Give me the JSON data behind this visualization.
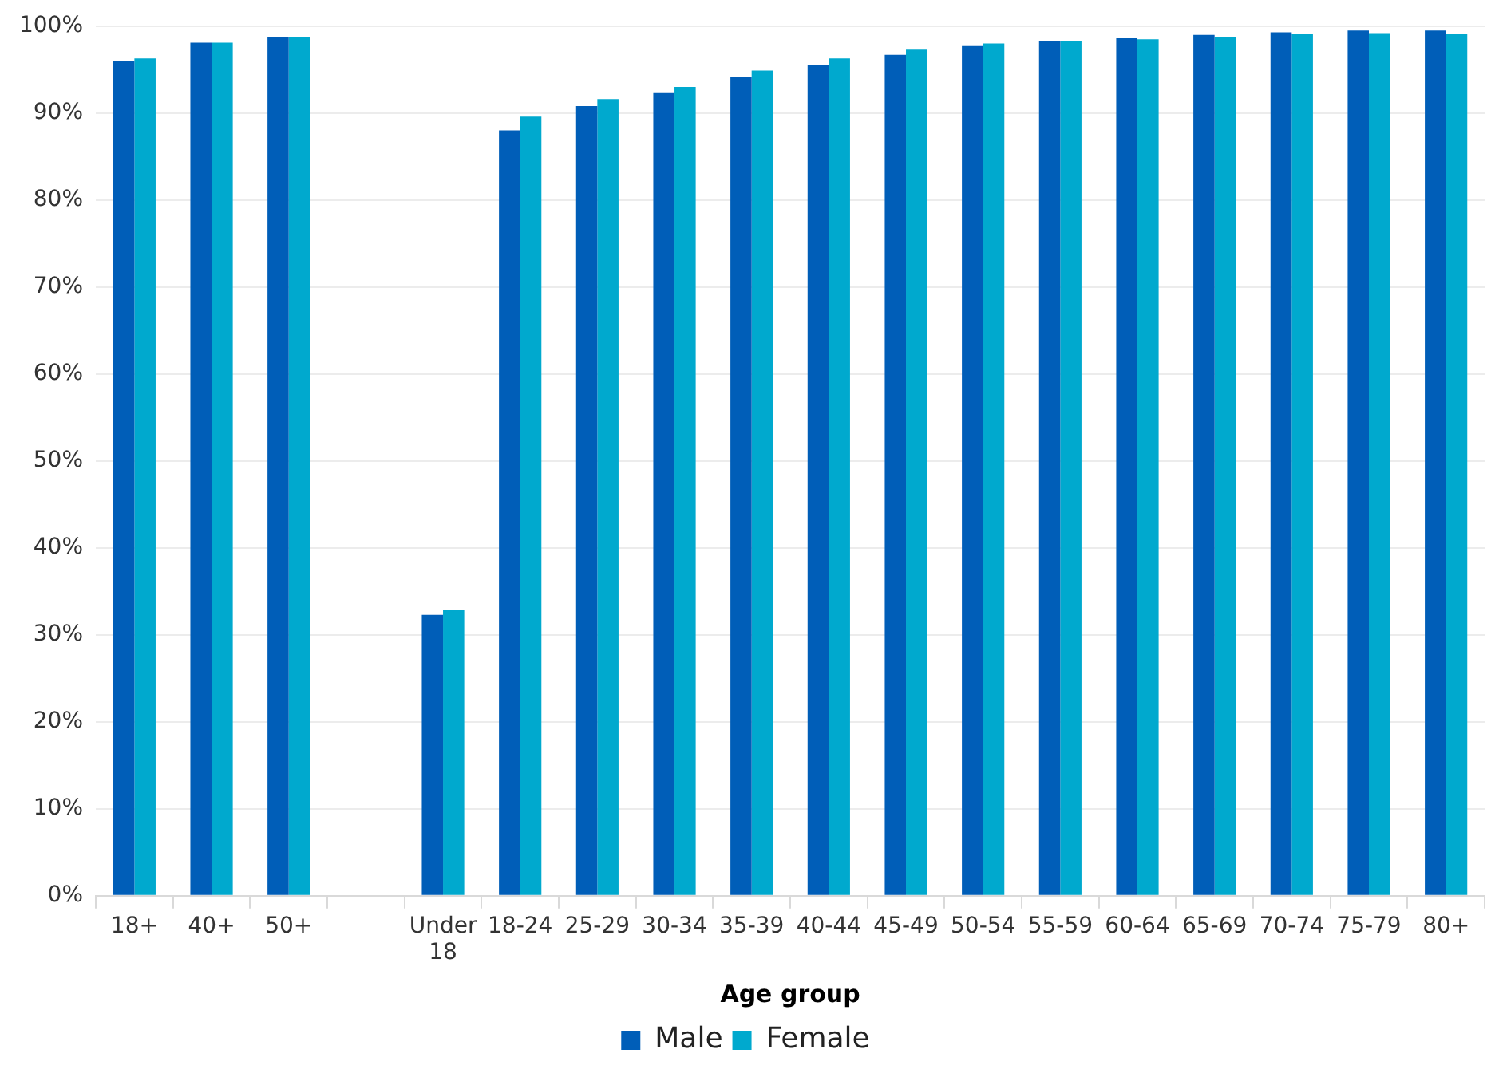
{
  "chart_data": {
    "type": "bar",
    "xlabel": "Age group",
    "categories": [
      "18+",
      "40+",
      "50+",
      null,
      "Under 18",
      "18-24",
      "25-29",
      "30-34",
      "35-39",
      "40-44",
      "45-49",
      "50-54",
      "55-59",
      "60-64",
      "65-69",
      "70-74",
      "75-79",
      "80+"
    ],
    "series": [
      {
        "name": "Male",
        "color": "#005eb8",
        "values": [
          96.0,
          98.1,
          98.7,
          null,
          32.3,
          88.0,
          90.8,
          92.4,
          94.2,
          95.5,
          96.7,
          97.7,
          98.3,
          98.6,
          99.0,
          99.3,
          99.5,
          99.5
        ]
      },
      {
        "name": "Female",
        "color": "#00a9ce",
        "values": [
          96.3,
          98.1,
          98.7,
          null,
          32.9,
          89.6,
          91.6,
          93.0,
          94.9,
          96.3,
          97.3,
          98.0,
          98.3,
          98.5,
          98.8,
          99.1,
          99.2,
          99.1
        ]
      }
    ],
    "ylim": [
      0,
      100
    ],
    "yticks": [
      {
        "value": 0,
        "label": "0%"
      },
      {
        "value": 10,
        "label": "10%"
      },
      {
        "value": 20,
        "label": "20%"
      },
      {
        "value": 30,
        "label": "30%"
      },
      {
        "value": 40,
        "label": "40%"
      },
      {
        "value": 50,
        "label": "50%"
      },
      {
        "value": 60,
        "label": "60%"
      },
      {
        "value": 70,
        "label": "70%"
      },
      {
        "value": 80,
        "label": "80%"
      },
      {
        "value": 90,
        "label": "90%"
      },
      {
        "value": 100,
        "label": "100%"
      }
    ],
    "grid": "y",
    "legend": "bottom"
  }
}
